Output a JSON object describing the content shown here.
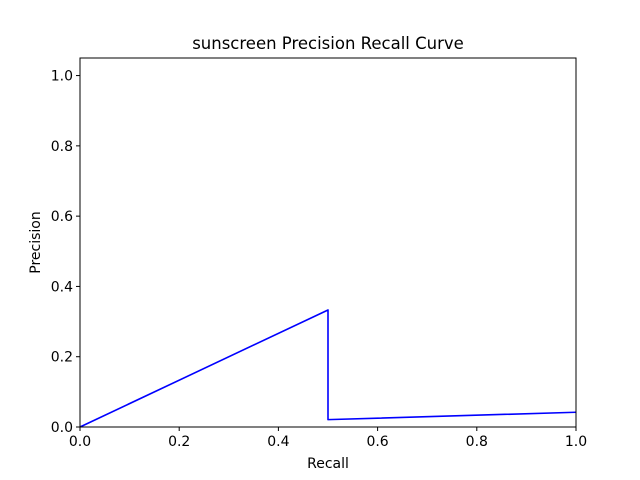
{
  "chart_data": {
    "type": "line",
    "title": "sunscreen Precision Recall Curve",
    "xlabel": "Recall",
    "ylabel": "Precision",
    "xlim": [
      0.0,
      1.0
    ],
    "ylim": [
      0.0,
      1.05
    ],
    "xticks": [
      0.0,
      0.2,
      0.4,
      0.6,
      0.8,
      1.0
    ],
    "yticks": [
      0.0,
      0.2,
      0.4,
      0.6,
      0.8,
      1.0
    ],
    "xtick_labels": [
      "0.0",
      "0.2",
      "0.4",
      "0.6",
      "0.8",
      "1.0"
    ],
    "ytick_labels": [
      "0.0",
      "0.2",
      "0.4",
      "0.6",
      "0.8",
      "1.0"
    ],
    "grid": false,
    "series": [
      {
        "color": "#0000ff",
        "x": [
          0.0,
          0.5,
          0.5,
          1.0
        ],
        "y": [
          0.0,
          0.333,
          0.021,
          0.042
        ]
      }
    ]
  }
}
